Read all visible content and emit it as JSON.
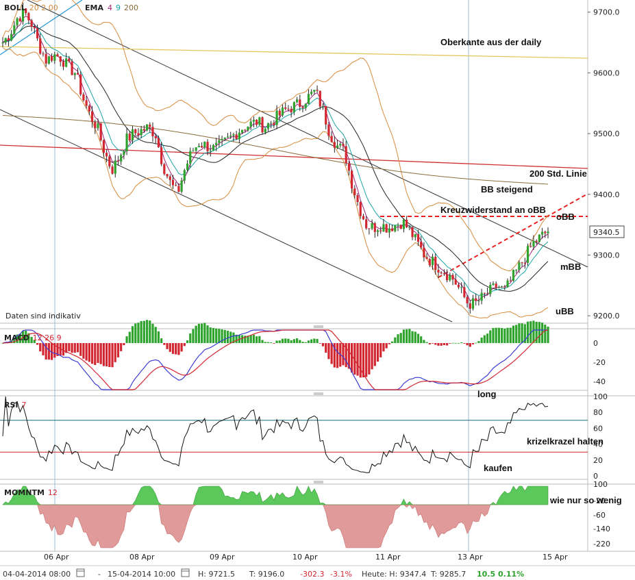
{
  "indicator_labels": {
    "boll": {
      "name": "BOLL",
      "params": "20 2.00"
    },
    "ema": {
      "name": "EMA",
      "p1": "4",
      "p2": "9",
      "p3": "200"
    },
    "macd": {
      "name": "MACD",
      "params": "12 26 9"
    },
    "rsi": {
      "name": "RSI",
      "params": "7"
    },
    "momentum": {
      "name": "MOMNTM",
      "params": "12"
    }
  },
  "note": "Daten sind indikativ",
  "annotations": {
    "oberkante": "Oberkante aus der daily",
    "linie200": "200 Std. Linie",
    "bb_steigend": "BB steigend",
    "kreuz": "Kreuzwiderstand an oBB",
    "obb": "oBB",
    "mbb": "mBB",
    "ubb": "uBB",
    "long": "long",
    "krizel": "krizelkrazel halten",
    "kaufen": "kaufen",
    "wie_nur": "wie nur so wenig"
  },
  "price_label": "9340.5",
  "status_bar": {
    "from": "04-04-2014 08:00",
    "sep": "-",
    "to": "15-04-2014 10:00",
    "h": "H: 9721.5",
    "l": "T: 9196.0",
    "chg": "-302.3",
    "chg_pct": "-3.1%",
    "heute_h": "Heute: H: 9347.4",
    "heute_l": "T: 9285.7",
    "heute_chg": "10.5",
    "heute_pct": "0.11%"
  },
  "colors": {
    "bull": "#2ea32e",
    "bear": "#d22630",
    "boll": "#d68a3c",
    "ema4": "#a0247a",
    "ema9": "#1aa3a3",
    "ema200": "#8a6a3a",
    "macd": "#3c3cd2",
    "signal": "#d22630",
    "rsi_upper": "#1a6a7a",
    "rsi_lower": "#c82020",
    "mom_pos": "#5bc85b",
    "mom_neg": "#e09a9a",
    "dashed": "#e82020"
  },
  "chart_data": [
    {
      "type": "candlestick",
      "panel": "price",
      "x_ticks": [
        "06 Apr",
        "08 Apr",
        "09 Apr",
        "10 Apr",
        "11 Apr",
        "13 Apr",
        "15 Apr"
      ],
      "y_ticks": [
        "9700.0",
        "9600.0",
        "9500.0",
        "9400.0",
        "9300.0",
        "9200.0"
      ],
      "ylim": [
        9190,
        9720
      ],
      "period": [
        "04-04-2014 08:00",
        "15-04-2014 10:00"
      ],
      "high": 9721.5,
      "low": 9196.0,
      "last": 9340.5,
      "close_path": [
        9650,
        9665,
        9690,
        9700,
        9680,
        9645,
        9620,
        9630,
        9625,
        9610,
        9600,
        9560,
        9530,
        9510,
        9470,
        9440,
        9460,
        9490,
        9500,
        9505,
        9510,
        9500,
        9450,
        9420,
        9400,
        9440,
        9470,
        9485,
        9480,
        9475,
        9480,
        9490,
        9500,
        9510,
        9515,
        9520,
        9510,
        9520,
        9530,
        9540,
        9545,
        9550,
        9560,
        9570,
        9540,
        9500,
        9480,
        9470,
        9420,
        9380,
        9350,
        9345,
        9350,
        9345,
        9350,
        9355,
        9340,
        9320,
        9300,
        9290,
        9280,
        9270,
        9260,
        9240,
        9220,
        9220,
        9230,
        9240,
        9250,
        9240,
        9260,
        9280,
        9300,
        9320,
        9330,
        9340
      ]
    },
    {
      "type": "line",
      "panel": "MACD",
      "y_ticks": [
        "0",
        "-20",
        "-40"
      ],
      "series": [
        {
          "name": "MACD"
        },
        {
          "name": "Signal"
        }
      ]
    },
    {
      "type": "line",
      "panel": "RSI",
      "y_ticks": [
        "100",
        "80",
        "60",
        "40",
        "20",
        "0"
      ],
      "ylim": [
        0,
        100
      ]
    },
    {
      "type": "area",
      "panel": "MOMNTM",
      "y_ticks": [
        "100",
        "-20",
        "-60",
        "-140",
        "-220"
      ]
    }
  ]
}
